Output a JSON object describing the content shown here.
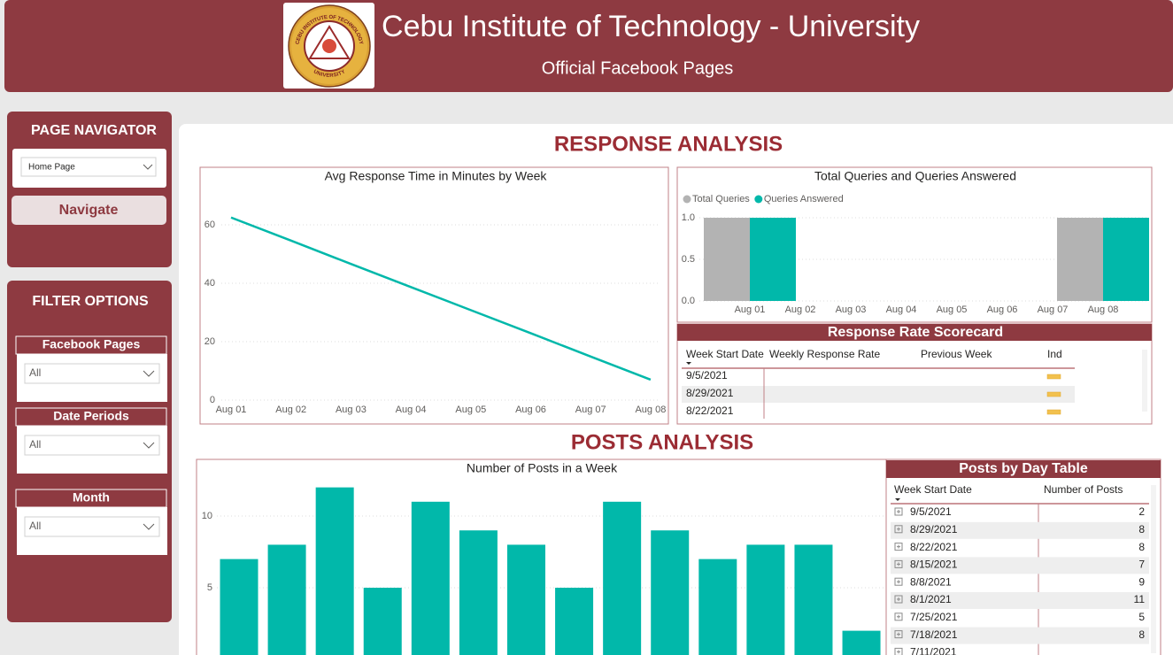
{
  "header": {
    "title": "Cebu Institute of Technology - University",
    "subtitle": "Official Facebook Pages",
    "logo_top": "CEBU INSTITUTE OF TECHNOLOGY",
    "logo_bottom": "UNIVERSITY"
  },
  "navigator": {
    "title": "PAGE NAVIGATOR",
    "dropdown": "Home Page",
    "button": "Navigate"
  },
  "filters": {
    "title": "FILTER OPTIONS",
    "slicers": [
      {
        "label": "Facebook Pages",
        "value": "All"
      },
      {
        "label": "Date Periods",
        "value": "All"
      },
      {
        "label": "Month",
        "value": "All"
      }
    ]
  },
  "sections": {
    "response": "RESPONSE ANALYSIS",
    "posts": "POSTS ANALYSIS"
  },
  "scorecard": {
    "title": "Response Rate Scorecard",
    "columns": [
      "Week Start Date",
      "Weekly Response Rate",
      "Previous Week",
      "Ind"
    ],
    "rows": [
      [
        "9/5/2021"
      ],
      [
        "8/29/2021"
      ],
      [
        "8/22/2021"
      ]
    ]
  },
  "posts_table": {
    "title": "Posts by Day Table",
    "columns": [
      "Week Start Date",
      "Number of Posts"
    ],
    "rows": [
      [
        "9/5/2021",
        2
      ],
      [
        "8/29/2021",
        8
      ],
      [
        "8/22/2021",
        8
      ],
      [
        "8/15/2021",
        7
      ],
      [
        "8/8/2021",
        9
      ],
      [
        "8/1/2021",
        11
      ],
      [
        "7/25/2021",
        5
      ],
      [
        "7/18/2021",
        8
      ],
      [
        "7/11/2021"
      ]
    ]
  },
  "chart_data": [
    {
      "type": "line",
      "title": "Avg Response Time in Minutes by Week",
      "categories": [
        "Aug 01",
        "Aug 02",
        "Aug 03",
        "Aug 04",
        "Aug 05",
        "Aug 06",
        "Aug 07",
        "Aug 08"
      ],
      "values": [
        62.5,
        54.6,
        46.6,
        38.7,
        30.8,
        22.9,
        14.9,
        7
      ],
      "color": "#01b8aa",
      "ylim": [
        0,
        65
      ],
      "yticks": [
        0,
        20,
        40,
        60
      ],
      "grid": true
    },
    {
      "type": "bar",
      "title": "Total Queries and Queries Answered",
      "categories": [
        "Aug 01",
        "Aug 02",
        "Aug 03",
        "Aug 04",
        "Aug 05",
        "Aug 06",
        "Aug 07",
        "Aug 08"
      ],
      "series": [
        {
          "name": "Total Queries",
          "color": "#b3b3b3",
          "values": [
            1,
            0,
            0,
            0,
            0,
            0,
            0,
            1
          ]
        },
        {
          "name": "Queries Answered",
          "color": "#01b8aa",
          "values": [
            1,
            0,
            0,
            0,
            0,
            0,
            0,
            1
          ]
        }
      ],
      "ylim": [
        0,
        1
      ],
      "yticks": [
        {
          "value": 0,
          "label": "0.0"
        },
        0.5,
        {
          "value": 1,
          "label": "1.0"
        }
      ],
      "grid": true,
      "legend": "top-left"
    },
    {
      "type": "bar",
      "title": "Number of Posts in a Week",
      "categories": [
        null,
        null,
        null,
        null,
        null,
        null,
        null,
        null,
        null,
        null,
        null,
        null,
        null,
        null
      ],
      "values": [
        7,
        8,
        12,
        5,
        11,
        9,
        8,
        5,
        11,
        9,
        7,
        8,
        8,
        2
      ],
      "color": "#01b8aa",
      "ylim": [
        0,
        12.7
      ],
      "yticks": [
        5,
        10
      ],
      "grid": true
    }
  ]
}
